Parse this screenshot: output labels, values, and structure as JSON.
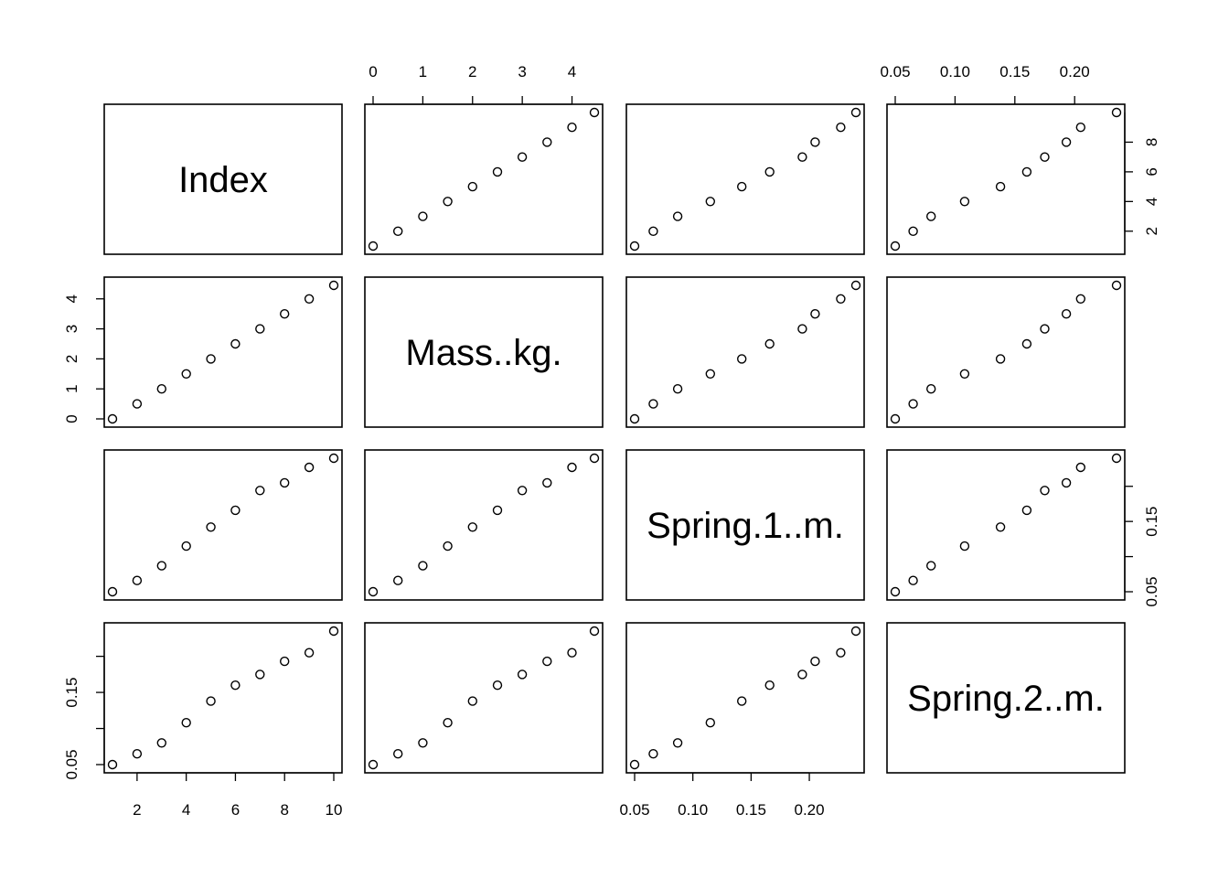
{
  "chart_data": {
    "type": "scatter",
    "variables": [
      "Index",
      "Mass..kg.",
      "Spring.1..m.",
      "Spring.2..m."
    ],
    "values": {
      "Index": [
        1,
        2,
        3,
        4,
        5,
        6,
        7,
        8,
        9,
        10
      ],
      "Mass..kg.": [
        0,
        0.5,
        1,
        1.5,
        2,
        2.5,
        3,
        3.5,
        4,
        4.45
      ],
      "Spring.1..m.": [
        0.05,
        0.066,
        0.087,
        0.115,
        0.142,
        0.166,
        0.194,
        0.205,
        0.227,
        0.24
      ],
      "Spring.2..m.": [
        0.05,
        0.065,
        0.08,
        0.108,
        0.138,
        0.16,
        0.175,
        0.193,
        0.205,
        0.235
      ]
    },
    "axis_ranges": {
      "Index": [
        1,
        10
      ],
      "Mass..kg.": [
        0,
        4.45
      ],
      "Spring.1..m.": [
        0.05,
        0.24
      ],
      "Spring.2..m.": [
        0.05,
        0.235
      ]
    },
    "ticks": {
      "Index": [
        2,
        4,
        6,
        8,
        10
      ],
      "Mass..kg.": [
        0,
        1,
        2,
        3,
        4
      ],
      "Spring.1..m.": [
        0.05,
        0.1,
        0.15,
        0.2
      ],
      "Spring.2..m.": [
        0.05,
        0.1,
        0.15,
        0.2
      ]
    },
    "tick_labels": {
      "Index": [
        "2",
        "4",
        "6",
        "8",
        "10"
      ],
      "Mass..kg.": [
        "0",
        "1",
        "2",
        "3",
        "4"
      ],
      "Spring.1..m.": [
        "0.05",
        "0.10",
        "0.15",
        "0.20"
      ],
      "Spring.2..m.": [
        "0.05",
        "0.10",
        "0.15",
        "0.20"
      ],
      "Spring.2..m.(y)": [
        "0.05",
        "",
        "0.15",
        ""
      ],
      "Index(y)": [
        "2",
        "4",
        "6",
        "8"
      ]
    },
    "axis_placement": {
      "Index": "bottom-col-1 / right-row-1",
      "Mass..kg.": "top-col-2 / left-row-2",
      "Spring.1..m.": "bottom-col-3 / right-row-3",
      "Spring.2..m.": "top-col-4 / left-row-4"
    },
    "grid": false,
    "legend": "none"
  }
}
